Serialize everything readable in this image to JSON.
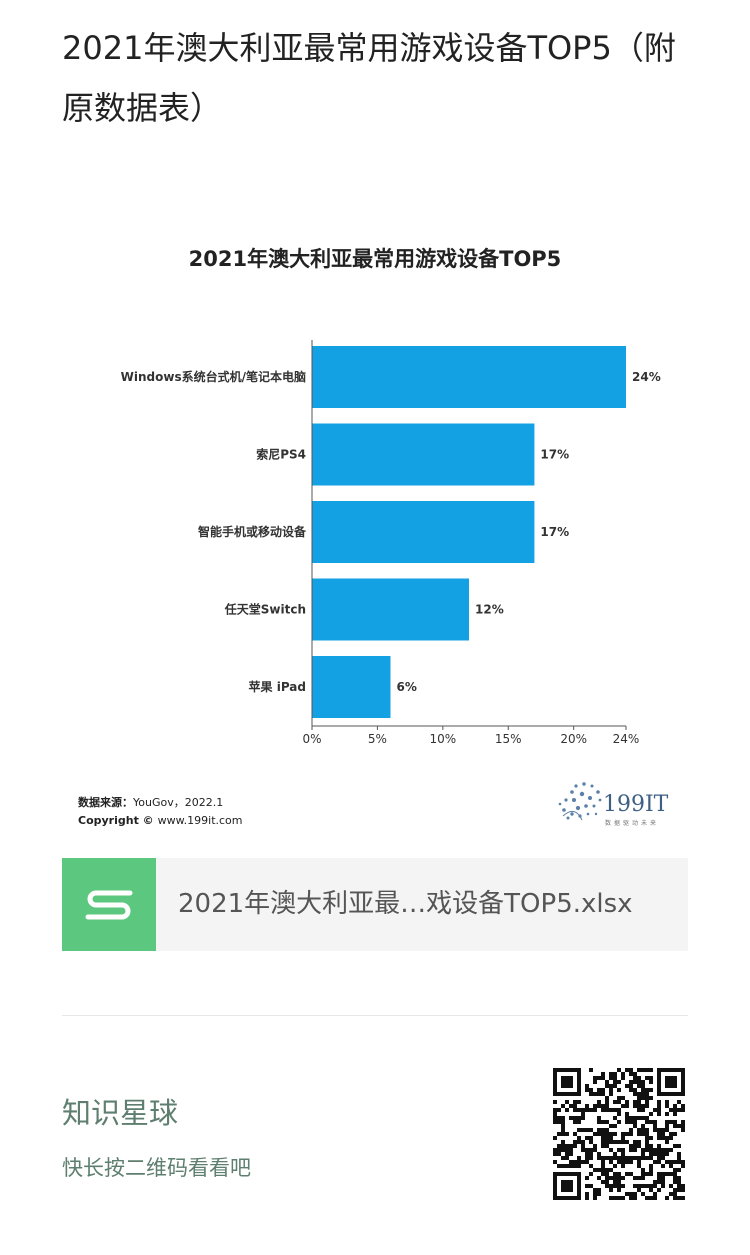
{
  "article": {
    "title": "2021年澳大利亚最常用游戏设备TOP5（附原数据表）"
  },
  "chart_data": {
    "type": "bar",
    "orientation": "horizontal",
    "title": "2021年澳大利亚最常用游戏设备TOP5",
    "categories": [
      "Windows系统台式机/笔记本电脑",
      "索尼PS4",
      "智能手机或移动设备",
      "任天堂Switch",
      "苹果 iPad"
    ],
    "values": [
      24,
      17,
      17,
      12,
      6
    ],
    "data_labels": [
      "24%",
      "17%",
      "17%",
      "12%",
      "6%"
    ],
    "xticks": [
      "0%",
      "5%",
      "10%",
      "15%",
      "20%",
      "24%"
    ],
    "xtick_values": [
      0,
      5,
      10,
      15,
      20,
      24
    ],
    "xlim": [
      0,
      24
    ],
    "bar_color": "#14a1e3",
    "grid": false,
    "source_label": "数据来源：",
    "source_text": "YouGov，2022.1",
    "copyright_label": "Copyright ©",
    "copyright_text": "www.199it.com",
    "logo_text": "199IT",
    "logo_tagline": "数据驱动未来"
  },
  "file": {
    "name": "2021年澳大利亚最…戏设备TOP5.xlsx",
    "icon": "spreadsheet-s-icon",
    "icon_color": "#5cc77e"
  },
  "promo": {
    "title": "知识星球",
    "subtitle": "快长按二维码看看吧",
    "qr_icon": "qr-code-icon"
  }
}
